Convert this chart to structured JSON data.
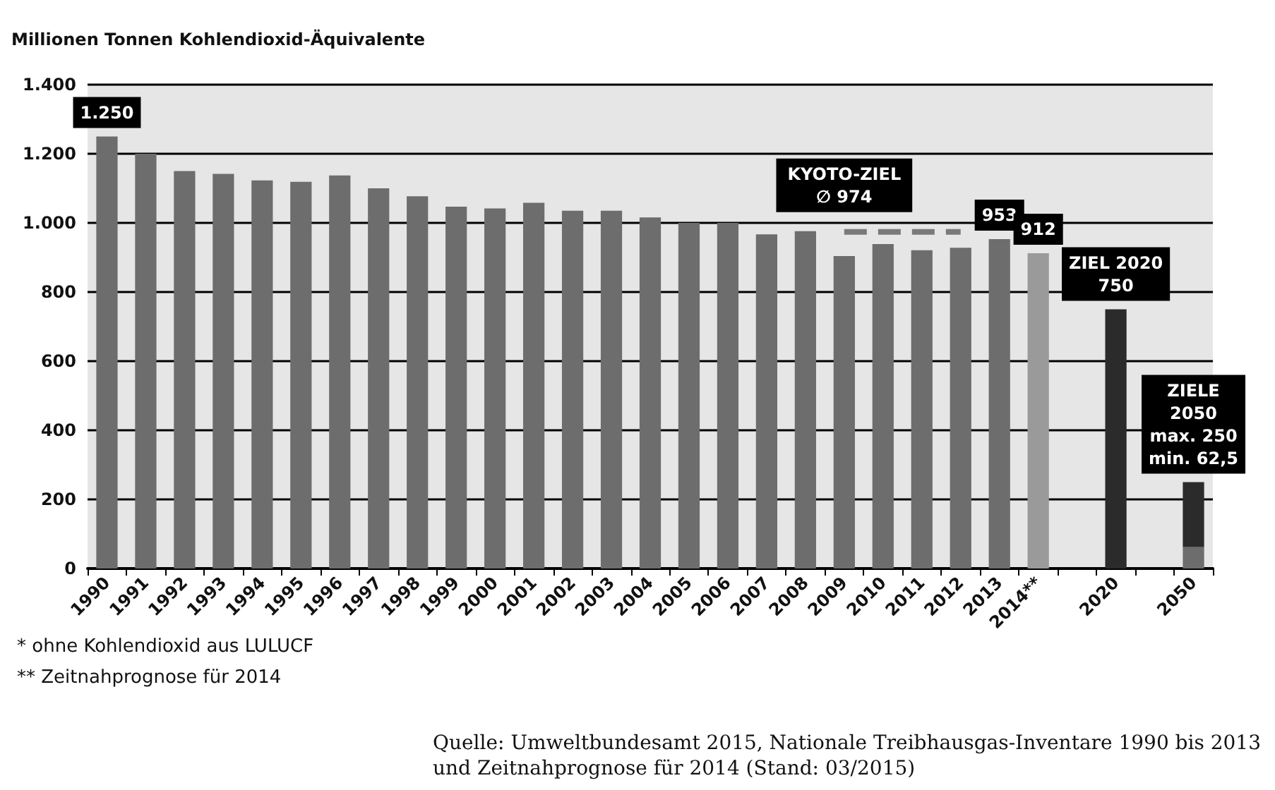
{
  "chart_data": {
    "type": "bar",
    "ylabel": "Millionen Tonnen Kohlendioxid-Äquivalente",
    "categories": [
      "1990",
      "1991",
      "1992",
      "1993",
      "1994",
      "1995",
      "1996",
      "1997",
      "1998",
      "1999",
      "2000",
      "2001",
      "2002",
      "2003",
      "2004",
      "2005",
      "2006",
      "2007",
      "2008",
      "2009",
      "2010",
      "2011",
      "2012",
      "2013",
      "2014**",
      null,
      "2020",
      null,
      "2050"
    ],
    "stacked": true,
    "series": [
      {
        "values": [
          1250,
          1200,
          1150,
          1142,
          1123,
          1119,
          1137,
          1100,
          1077,
          1047,
          1042,
          1058,
          1035,
          1035,
          1016,
          1000,
          1000,
          967,
          976,
          904,
          939,
          921,
          928,
          953,
          912,
          null,
          750,
          null,
          62.5
        ],
        "colors": [
          "#6d6d6d",
          "#6d6d6d",
          "#6d6d6d",
          "#6d6d6d",
          "#6d6d6d",
          "#6d6d6d",
          "#6d6d6d",
          "#6d6d6d",
          "#6d6d6d",
          "#6d6d6d",
          "#6d6d6d",
          "#6d6d6d",
          "#6d6d6d",
          "#6d6d6d",
          "#6d6d6d",
          "#6d6d6d",
          "#6d6d6d",
          "#6d6d6d",
          "#6d6d6d",
          "#6d6d6d",
          "#6d6d6d",
          "#6d6d6d",
          "#6d6d6d",
          "#6d6d6d",
          "#9a9a9a",
          "#6d6d6d",
          "#2b2b2b",
          "#6d6d6d",
          "#6d6d6d"
        ],
        "value_labels": [
          "1.250",
          null,
          null,
          null,
          null,
          null,
          null,
          null,
          null,
          null,
          null,
          null,
          null,
          null,
          null,
          null,
          null,
          null,
          null,
          null,
          null,
          null,
          null,
          "953",
          "912",
          null,
          "ZIEL 2020\n750",
          null,
          null
        ]
      },
      {
        "values": [
          null,
          null,
          null,
          null,
          null,
          null,
          null,
          null,
          null,
          null,
          null,
          null,
          null,
          null,
          null,
          null,
          null,
          null,
          null,
          null,
          null,
          null,
          null,
          null,
          null,
          null,
          null,
          null,
          187.5
        ],
        "color": "#2b2b2b",
        "value_labels": [
          null,
          null,
          null,
          null,
          null,
          null,
          null,
          null,
          null,
          null,
          null,
          null,
          null,
          null,
          null,
          null,
          null,
          null,
          null,
          null,
          null,
          null,
          null,
          null,
          null,
          null,
          null,
          null,
          "ZIELE\n2050\nmax. 250\nmin. 62,5"
        ]
      },
      {
        "type": "line",
        "color": "#7a7a7a",
        "line_style": "dashed",
        "marker": "none",
        "values": [
          null,
          null,
          null,
          null,
          null,
          null,
          null,
          null,
          null,
          null,
          null,
          null,
          null,
          null,
          null,
          null,
          null,
          null,
          null,
          974,
          974,
          974,
          974,
          null,
          null,
          null,
          null,
          null,
          null
        ]
      }
    ],
    "ylim": [
      0,
      1400
    ],
    "yticks": [
      {
        "value": 0,
        "label": "0"
      },
      {
        "value": 200,
        "label": "200"
      },
      {
        "value": 400,
        "label": "400"
      },
      {
        "value": 600,
        "label": "600"
      },
      {
        "value": 800,
        "label": "800"
      },
      {
        "value": 1000,
        "label": "1.000"
      },
      {
        "value": 1200,
        "label": "1.200"
      },
      {
        "value": 1400,
        "label": "1.400"
      }
    ],
    "grid": "y",
    "annotations": [
      {
        "text": "KYOTO-ZIEL\n∅ 974",
        "x": "2009",
        "y": 974
      },
      "* ohne Kohlendioxid aus LULUCF",
      "** Zeitnahprognose für 2014",
      "Quelle: Umweltbundesamt 2015, Nationale Treibhausgas-Inventare 1990 bis 2013\nund Zeitnahprognose für 2014 (Stand: 03/2015)"
    ]
  }
}
